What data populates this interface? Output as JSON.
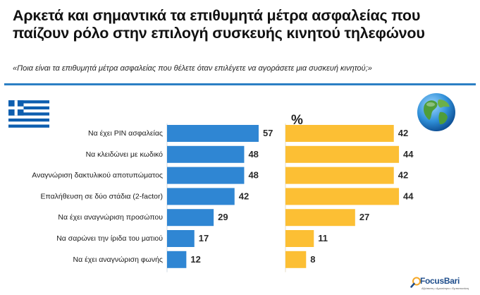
{
  "title": {
    "line1": "Αρκετά και σημαντικά τα επιθυμητά μέτρα ασφαλείας που",
    "line2": "παίζουν ρόλο στην επιλογή συσκευής κινητού τηλεφώνου"
  },
  "subtitle": "«Ποια είναι τα επιθυμητά μέτρα ασφαλείας που θέλετε όταν επιλέγετε να αγοράσετε μια συσκευή κινητού;»",
  "logo": {
    "name": "FocusBari",
    "tagline": "Αξιόπιστη • Αμεσότητα • Εμπιστοσύνη"
  },
  "colors": {
    "greece": "#2f86d3",
    "world": "#fcbf34",
    "accent": "#2b7fc4"
  },
  "chart_data": {
    "type": "bar",
    "orientation": "horizontal",
    "unit_label": "%",
    "categories": [
      "Να έχει PIN ασφαλείας",
      "Να κλειδώνει με κωδικό",
      "Αναγνώριση δακτυλικού αποτυπώματος",
      "Επαλήθευση σε δύο στάδια (2-factor)",
      "Να έχει αναγνώριση προσώπου",
      "Να σαρώνει την ίριδα του ματιού",
      "Να έχει αναγνώριση φωνής"
    ],
    "series": [
      {
        "name": "Ελλάδα",
        "values": [
          57,
          48,
          48,
          42,
          29,
          17,
          12
        ]
      },
      {
        "name": "Παγκόσμια",
        "values": [
          42,
          44,
          42,
          44,
          27,
          11,
          8
        ]
      }
    ],
    "xlim": [
      0,
      60
    ]
  }
}
